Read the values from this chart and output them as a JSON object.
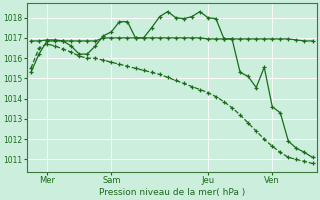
{
  "bg_color": "#cceedd",
  "grid_color": "#ffffff",
  "line_color": "#1a6b1a",
  "spine_color": "#3a7a3a",
  "title": "Pression niveau de la mer( hPa )",
  "yticks": [
    1011,
    1012,
    1013,
    1014,
    1015,
    1016,
    1017,
    1018
  ],
  "ymin": 1010.4,
  "ymax": 1018.7,
  "xtick_labels": [
    "Mer",
    "Sam",
    "Jeu",
    "Ven"
  ],
  "xtick_positions": [
    2,
    10,
    22,
    30
  ],
  "vline_positions": [
    2,
    10,
    22,
    30
  ],
  "n_points": 36,
  "series1": [
    1015.3,
    1016.2,
    1016.85,
    1016.85,
    1016.85,
    1016.6,
    1016.2,
    1016.2,
    1016.6,
    1017.1,
    1017.3,
    1017.8,
    1017.8,
    1017.0,
    1017.0,
    1017.5,
    1018.05,
    1018.3,
    1018.0,
    1017.95,
    1018.05,
    1018.3,
    1018.0,
    1017.95,
    1016.95,
    1016.95,
    1015.3,
    1015.1,
    1014.55,
    1015.55,
    1013.6,
    1013.3,
    1011.9,
    1011.55,
    1011.35,
    1011.1
  ],
  "series2": [
    1016.85,
    1016.85,
    1016.9,
    1016.9,
    1016.85,
    1016.85,
    1016.85,
    1016.85,
    1016.85,
    1017.0,
    1017.0,
    1017.0,
    1017.0,
    1017.0,
    1017.0,
    1017.0,
    1017.0,
    1017.0,
    1017.0,
    1017.0,
    1017.0,
    1017.0,
    1016.95,
    1016.95,
    1016.95,
    1016.95,
    1016.95,
    1016.95,
    1016.95,
    1016.95,
    1016.95,
    1016.95,
    1016.95,
    1016.9,
    1016.85,
    1016.85
  ],
  "series3": [
    1015.5,
    1016.5,
    1016.7,
    1016.6,
    1016.45,
    1016.3,
    1016.1,
    1016.0,
    1016.0,
    1015.9,
    1015.8,
    1015.7,
    1015.6,
    1015.5,
    1015.4,
    1015.3,
    1015.2,
    1015.05,
    1014.9,
    1014.75,
    1014.6,
    1014.45,
    1014.3,
    1014.1,
    1013.85,
    1013.55,
    1013.2,
    1012.8,
    1012.4,
    1012.0,
    1011.65,
    1011.35,
    1011.1,
    1011.0,
    1010.9,
    1010.8
  ]
}
